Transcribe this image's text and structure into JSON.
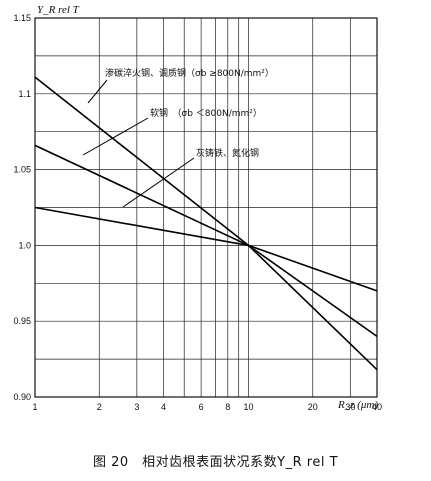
{
  "chart_data": {
    "type": "line",
    "xscale": "log",
    "xlim": [
      1,
      40
    ],
    "ylim": [
      0.9,
      1.15
    ],
    "grid": true,
    "ylabel": "Y_R rel T",
    "xlabel": "R_z (μm)",
    "x_ticks": [
      1,
      2,
      3,
      4,
      6,
      8,
      10,
      20,
      30,
      40
    ],
    "y_ticks": [
      0.9,
      0.95,
      1.0,
      1.05,
      1.1,
      1.15
    ],
    "y_tick_labels": [
      "0.90",
      "0.95",
      "1.0",
      "1.05",
      "1.1",
      "1.15"
    ],
    "series": [
      {
        "name": "渗碳淬火钢、调质钢（σb ≥800N/mm²）",
        "x": [
          1,
          10,
          40
        ],
        "y": [
          1.111,
          1.0,
          0.918
        ]
      },
      {
        "name": "软钢　（σb ＜800N/mm²）",
        "x": [
          1,
          10,
          40
        ],
        "y": [
          1.066,
          1.0,
          0.94
        ]
      },
      {
        "name": "灰铸铁、氮化钢",
        "x": [
          1,
          10,
          40
        ],
        "y": [
          1.025,
          1.0,
          0.97
        ]
      }
    ],
    "annotations": [
      {
        "text": "渗碳淬火钢、调质钢（σb ≥800N/mm²）",
        "series": 0
      },
      {
        "text": "软钢　（σb ＜800N/mm²）",
        "series": 1
      },
      {
        "text": "灰铸铁、氮化钢",
        "series": 2
      }
    ]
  },
  "caption": "图 20　相对齿根表面状况系数Y_R rel T"
}
